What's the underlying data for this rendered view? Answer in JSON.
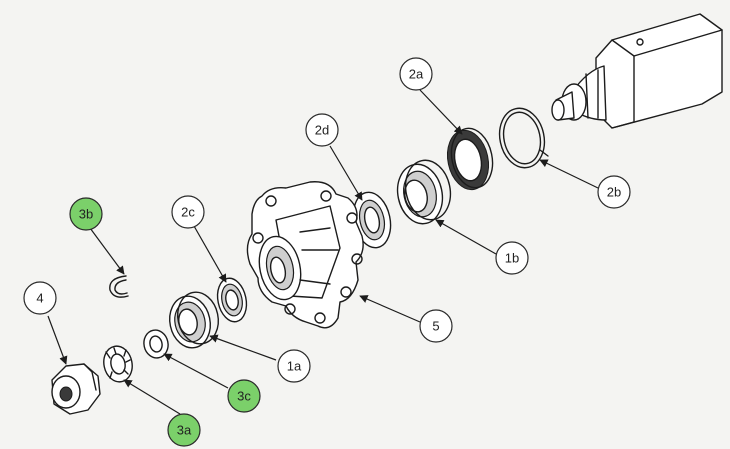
{
  "colors": {
    "highlight": "#7bd06a",
    "callout_fill": "#ffffff",
    "line": "#1c1c1c",
    "background": "#f4f4f2"
  },
  "callouts": {
    "c_4": {
      "label": "4",
      "highlighted": false
    },
    "c_3b": {
      "label": "3b",
      "highlighted": true
    },
    "c_2c": {
      "label": "2c",
      "highlighted": false
    },
    "c_1a": {
      "label": "1a",
      "highlighted": false
    },
    "c_3c": {
      "label": "3c",
      "highlighted": true
    },
    "c_3a": {
      "label": "3a",
      "highlighted": true
    },
    "c_2d": {
      "label": "2d",
      "highlighted": false
    },
    "c_2a": {
      "label": "2a",
      "highlighted": false
    },
    "c_1b": {
      "label": "1b",
      "highlighted": false
    },
    "c_2b": {
      "label": "2b",
      "highlighted": false
    },
    "c_5": {
      "label": "5",
      "highlighted": false
    }
  }
}
